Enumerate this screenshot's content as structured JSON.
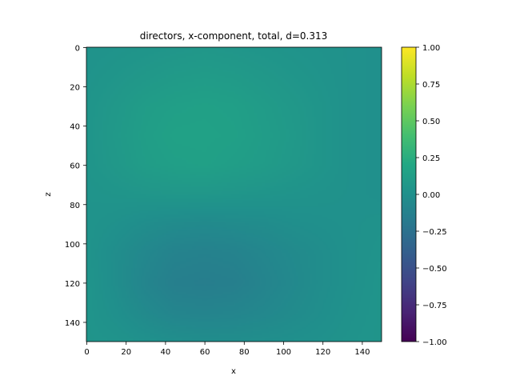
{
  "chart_data": {
    "type": "heatmap",
    "title": "directors, x-component, total, d=0.313",
    "xlabel": "x",
    "ylabel": "z",
    "xlim": [
      0,
      150
    ],
    "ylim": [
      150,
      0
    ],
    "x_ticks": [
      0,
      20,
      40,
      60,
      80,
      100,
      120,
      140
    ],
    "y_ticks": [
      0,
      20,
      40,
      60,
      80,
      100,
      120,
      140
    ],
    "colormap": "viridis",
    "colorbar": {
      "vmin": -1.0,
      "vmax": 1.0,
      "ticks": [
        1.0,
        0.75,
        0.5,
        0.25,
        0.0,
        -0.25,
        -0.5,
        -0.75,
        -1.0
      ],
      "tick_labels": [
        "1.00",
        "0.75",
        "0.50",
        "0.25",
        "0.00",
        "−0.25",
        "−0.50",
        "−0.75",
        "−1.00"
      ]
    },
    "field": {
      "description_values": "approximate x-component values sampled on a coarse grid; rows are z from 0 to 150, columns are x from 0 to 150",
      "x_samples": [
        0,
        15,
        30,
        45,
        60,
        75,
        90,
        105,
        120,
        135,
        150
      ],
      "z_samples": [
        0,
        15,
        30,
        45,
        60,
        75,
        90,
        105,
        120,
        135,
        150
      ],
      "values": [
        [
          0.02,
          0.03,
          0.04,
          0.05,
          0.06,
          0.05,
          0.04,
          0.03,
          0.02,
          0.01,
          0.0
        ],
        [
          0.03,
          0.05,
          0.07,
          0.09,
          0.1,
          0.09,
          0.07,
          0.05,
          0.03,
          0.01,
          0.0
        ],
        [
          0.04,
          0.07,
          0.11,
          0.13,
          0.14,
          0.13,
          0.1,
          0.07,
          0.04,
          0.01,
          0.0
        ],
        [
          0.04,
          0.08,
          0.12,
          0.15,
          0.15,
          0.14,
          0.11,
          0.08,
          0.04,
          0.01,
          0.0
        ],
        [
          0.04,
          0.07,
          0.11,
          0.13,
          0.14,
          0.12,
          0.1,
          0.07,
          0.04,
          0.01,
          0.0
        ],
        [
          0.03,
          0.04,
          0.05,
          0.06,
          0.06,
          0.05,
          0.04,
          0.03,
          0.02,
          0.01,
          0.0
        ],
        [
          0.03,
          0.01,
          -0.02,
          -0.04,
          -0.05,
          -0.04,
          -0.03,
          -0.01,
          0.0,
          0.01,
          0.02
        ],
        [
          0.03,
          -0.02,
          -0.07,
          -0.11,
          -0.12,
          -0.11,
          -0.08,
          -0.05,
          -0.02,
          0.01,
          0.03
        ],
        [
          0.04,
          -0.02,
          -0.09,
          -0.14,
          -0.15,
          -0.14,
          -0.1,
          -0.06,
          -0.02,
          0.01,
          0.04
        ],
        [
          0.04,
          0.0,
          -0.05,
          -0.09,
          -0.1,
          -0.09,
          -0.07,
          -0.04,
          -0.01,
          0.02,
          0.04
        ],
        [
          0.04,
          0.03,
          0.01,
          -0.01,
          -0.02,
          -0.02,
          -0.01,
          0.0,
          0.01,
          0.03,
          0.04
        ]
      ]
    }
  }
}
